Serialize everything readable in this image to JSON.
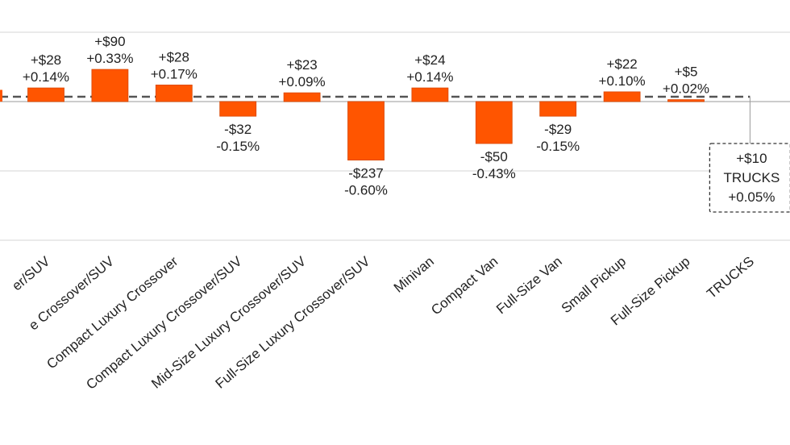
{
  "chart_data": {
    "type": "bar",
    "title": "",
    "xlabel": "",
    "ylabel": "",
    "grid": true,
    "bar_color": "#FF5500",
    "reference_line": {
      "name": "TRUCKS",
      "value_pct": 0.05,
      "style": "dashed"
    },
    "categories": [
      "er/SUV",
      "e Crossover/SUV",
      "Compact Luxury Crossover",
      "Compact Luxury Crossover/SUV",
      "Mid-Size Luxury Crossover/SUV",
      "Full-Size Luxury Crossover/SUV",
      "Minivan",
      "Compact Van",
      "Full-Size Van",
      "Small Pickup",
      "Full-Size Pickup",
      "TRUCKS"
    ],
    "series": [
      {
        "name": "Change",
        "dollar_labels": [
          "+$28",
          "+$90",
          "+$28",
          "-$32",
          "+$23",
          "-$237",
          "+$24",
          "-$50",
          "-$29",
          "+$22",
          "+$5",
          "+$10"
        ],
        "pct_labels": [
          "+0.14%",
          "+0.33%",
          "+0.17%",
          "-0.15%",
          "+0.09%",
          "-0.60%",
          "+0.14%",
          "-0.43%",
          "-0.15%",
          "+0.10%",
          "+0.02%",
          "+0.05%"
        ],
        "values_pct": [
          0.14,
          0.33,
          0.17,
          -0.15,
          0.09,
          -0.6,
          0.14,
          -0.43,
          -0.15,
          0.1,
          0.02,
          0.05
        ]
      }
    ],
    "summary_box": {
      "dollar": "+$10",
      "name": "TRUCKS",
      "pct": "+0.05%"
    }
  }
}
